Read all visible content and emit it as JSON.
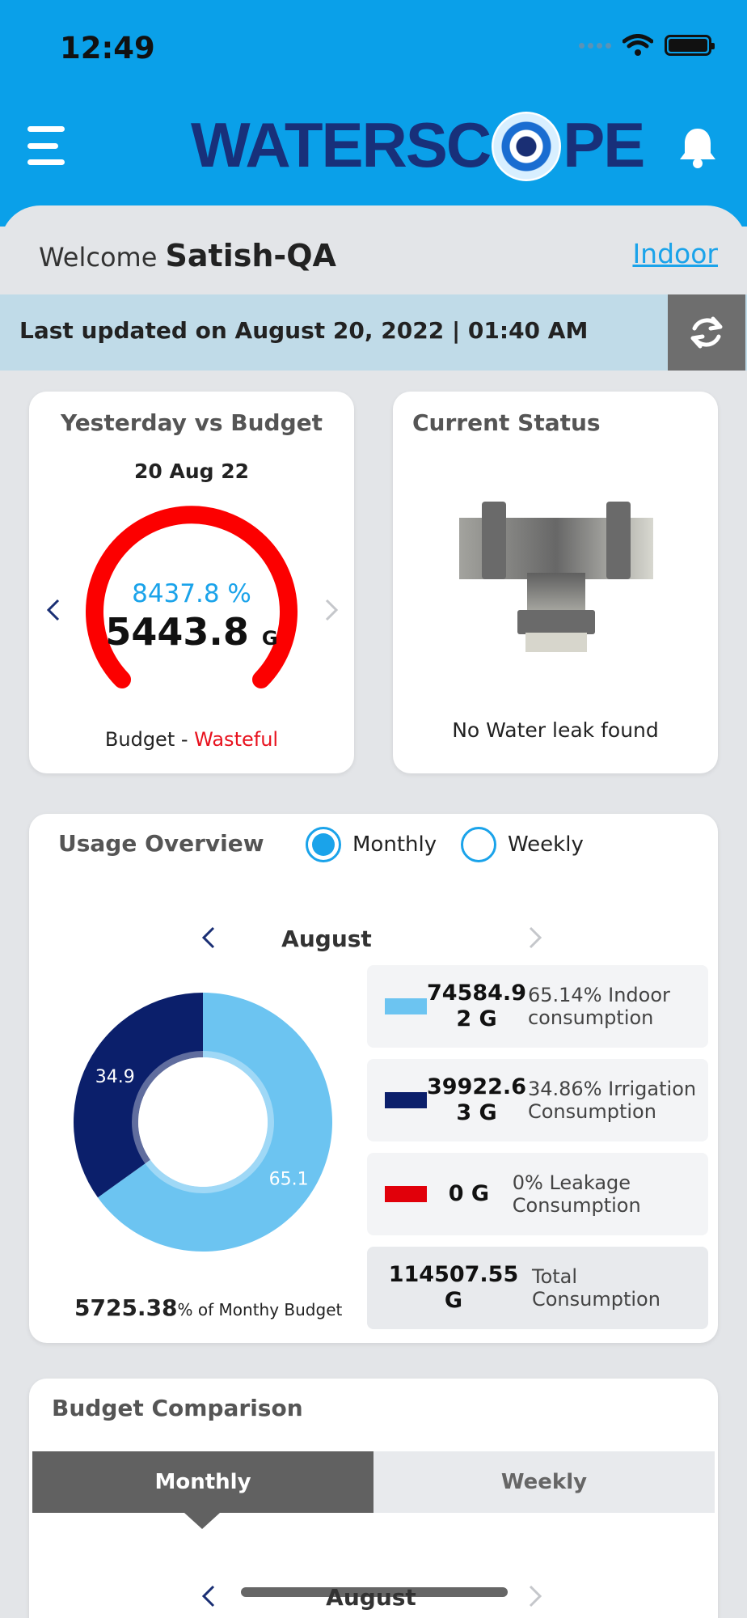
{
  "status_bar": {
    "time": "12:49"
  },
  "header": {
    "logo_text_left": "WATERSC",
    "logo_text_right": "PE"
  },
  "welcome": {
    "greeting": "Welcome",
    "user_name": "Satish-QA",
    "mode_link": "Indoor"
  },
  "last_updated": "Last updated on August 20, 2022 | 01:40 AM",
  "yesterday_vs_budget": {
    "title": "Yesterday vs Budget",
    "date": "20 Aug 22",
    "percent": "8437.8 %",
    "value": "5443.8",
    "unit": "G",
    "budget_label": "Budget - ",
    "budget_status": "Wasteful",
    "gauge_color": "#fc0000"
  },
  "current_status": {
    "title": "Current Status",
    "message": "No Water leak found"
  },
  "usage_overview": {
    "title": "Usage Overview",
    "radio_monthly": "Monthly",
    "radio_weekly": "Weekly",
    "selected": "Monthly",
    "month": "August",
    "budget_percent": "5725.38",
    "budget_percent_suffix": "% of Monthy Budget",
    "legend": [
      {
        "value": "74584.9\n2 G",
        "label": "65.14% Indoor consumption",
        "color": "#6cc4f1"
      },
      {
        "value": "39922.6\n3 G",
        "label": "34.86% Irrigation Consumption",
        "color": "#0b1f6b"
      },
      {
        "value": "0 G",
        "label": "0% Leakage Consumption",
        "color": "#e1000a"
      },
      {
        "value": "114507.55 G",
        "label": "Total Consumption"
      }
    ]
  },
  "chart_data": {
    "type": "pie",
    "categories": [
      "Indoor",
      "Irrigation"
    ],
    "values": [
      65.1,
      34.9
    ],
    "data_labels": [
      "65.1",
      "34.9"
    ],
    "colors": [
      "#6cc4f1",
      "#0b1f6b"
    ]
  },
  "budget_comparison": {
    "title": "Budget Comparison",
    "tab_monthly": "Monthly",
    "tab_weekly": "Weekly",
    "month": "August"
  }
}
